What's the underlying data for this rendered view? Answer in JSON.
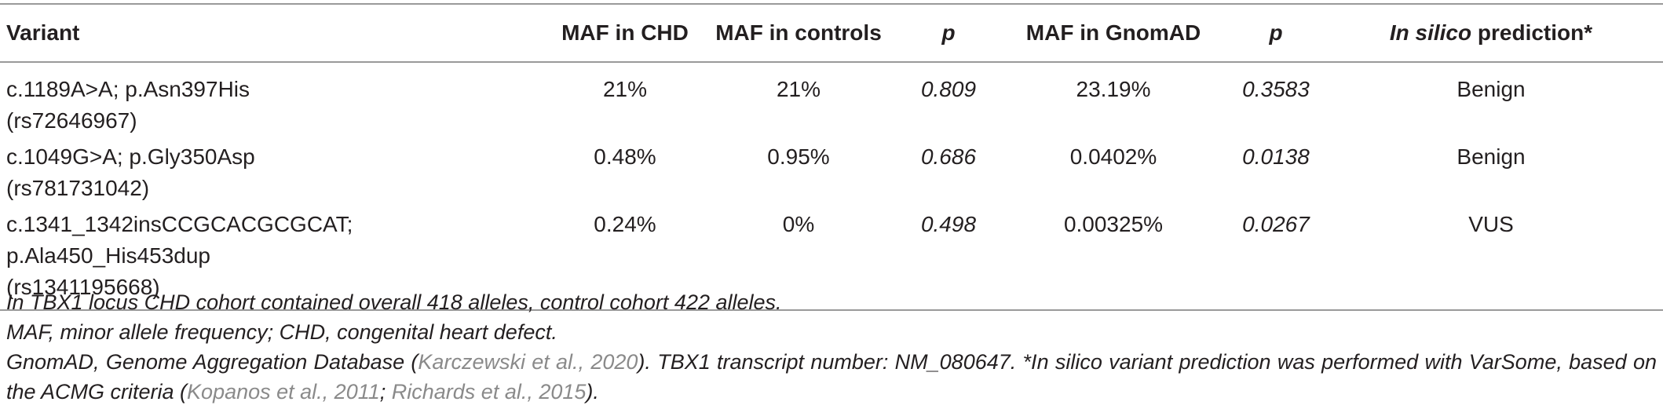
{
  "table": {
    "headers": {
      "variant": "Variant",
      "maf_chd": "MAF in CHD",
      "maf_controls": "MAF in controls",
      "p1": "p",
      "maf_gnomad": "MAF in GnomAD",
      "p2": "p",
      "prediction_italic": "In silico",
      "prediction_rest": " prediction*"
    },
    "rows": [
      {
        "variant_line1": "c.1189A>A; p.Asn397His",
        "variant_line2": "(rs72646967)",
        "maf_chd": "21%",
        "maf_controls": "21%",
        "p1": "0.809",
        "maf_gnomad": "23.19%",
        "p2": "0.3583",
        "prediction": "Benign"
      },
      {
        "variant_line1": "c.1049G>A; p.Gly350Asp",
        "variant_line2": "(rs781731042)",
        "maf_chd": "0.48%",
        "maf_controls": "0.95%",
        "p1": "0.686",
        "maf_gnomad": "0.0402%",
        "p2": "0.0138",
        "prediction": "Benign"
      },
      {
        "variant_line1": "c.1341_1342insCCGCACGCGCAT; p.Ala450_His453dup",
        "variant_line2": "(rs1341195668)",
        "maf_chd": "0.24%",
        "maf_controls": "0%",
        "p1": "0.498",
        "maf_gnomad": "0.00325%",
        "p2": "0.0267",
        "prediction": "VUS"
      }
    ]
  },
  "footnotes": {
    "line1": "In TBX1 locus CHD cohort contained overall 418 alleles, control cohort 422 alleles.",
    "line2": "MAF, minor allele frequency; CHD, congenital heart defect.",
    "line3_a": "GnomAD, Genome Aggregation Database (",
    "line3_ref1": "Karczewski et al., 2020",
    "line3_b": "). TBX1 transcript number: NM_080647. *In silico variant prediction was performed with VarSome, based on the ACMG criteria (",
    "line3_ref2": "Kopanos et al., 2011",
    "line3_sep": "; ",
    "line3_ref3": "Richards et al., 2015",
    "line3_c": ")."
  },
  "colors": {
    "text": "#231f20",
    "rule": "#9a9a9a",
    "reference_link": "#8a8a8a"
  }
}
